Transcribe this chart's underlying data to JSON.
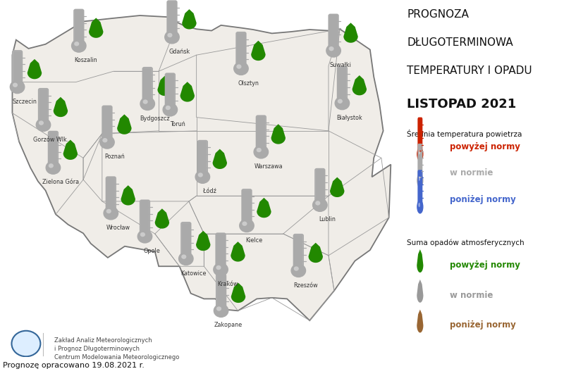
{
  "title_lines": [
    "PROGNOZA",
    "DŁUGOTERMINOWA",
    "TEMPERATURY I OPADU"
  ],
  "subtitle": "LISTOPAD 2021",
  "legend_temp_title": "Średnια temperatura powietrza",
  "legend_temp_items": [
    {
      "label": "powyżej normy",
      "color": "#cc2200"
    },
    {
      "label": "w normie",
      "color": "#aaaaaa"
    },
    {
      "label": "poniżej normy",
      "color": "#4466cc"
    }
  ],
  "legend_precip_title": "Suma opadów atmosferycznych",
  "legend_precip_items": [
    {
      "label": "powyżej normy",
      "color": "#228800"
    },
    {
      "label": "w normie",
      "color": "#999999"
    },
    {
      "label": "poniżej normy",
      "color": "#996633"
    }
  ],
  "footer_line1": "Zakład Analiz Meteorologicznych",
  "footer_line2": "i Prognoz Długoterminowych",
  "footer_line3": "Centrum Modelowania Meteorologicznego",
  "footer_bottom": "Prognozę opracowano 19.08.2021 r.",
  "thermo_color_norm": "#aaaaaa",
  "drop_color_above": "#228800",
  "drop_color_norm": "#999999",
  "drop_color_below": "#996633",
  "bg_color": "#ffffff",
  "map_face": "#f0ede8",
  "map_edge": "#777777",
  "voiv_edge": "#999999"
}
